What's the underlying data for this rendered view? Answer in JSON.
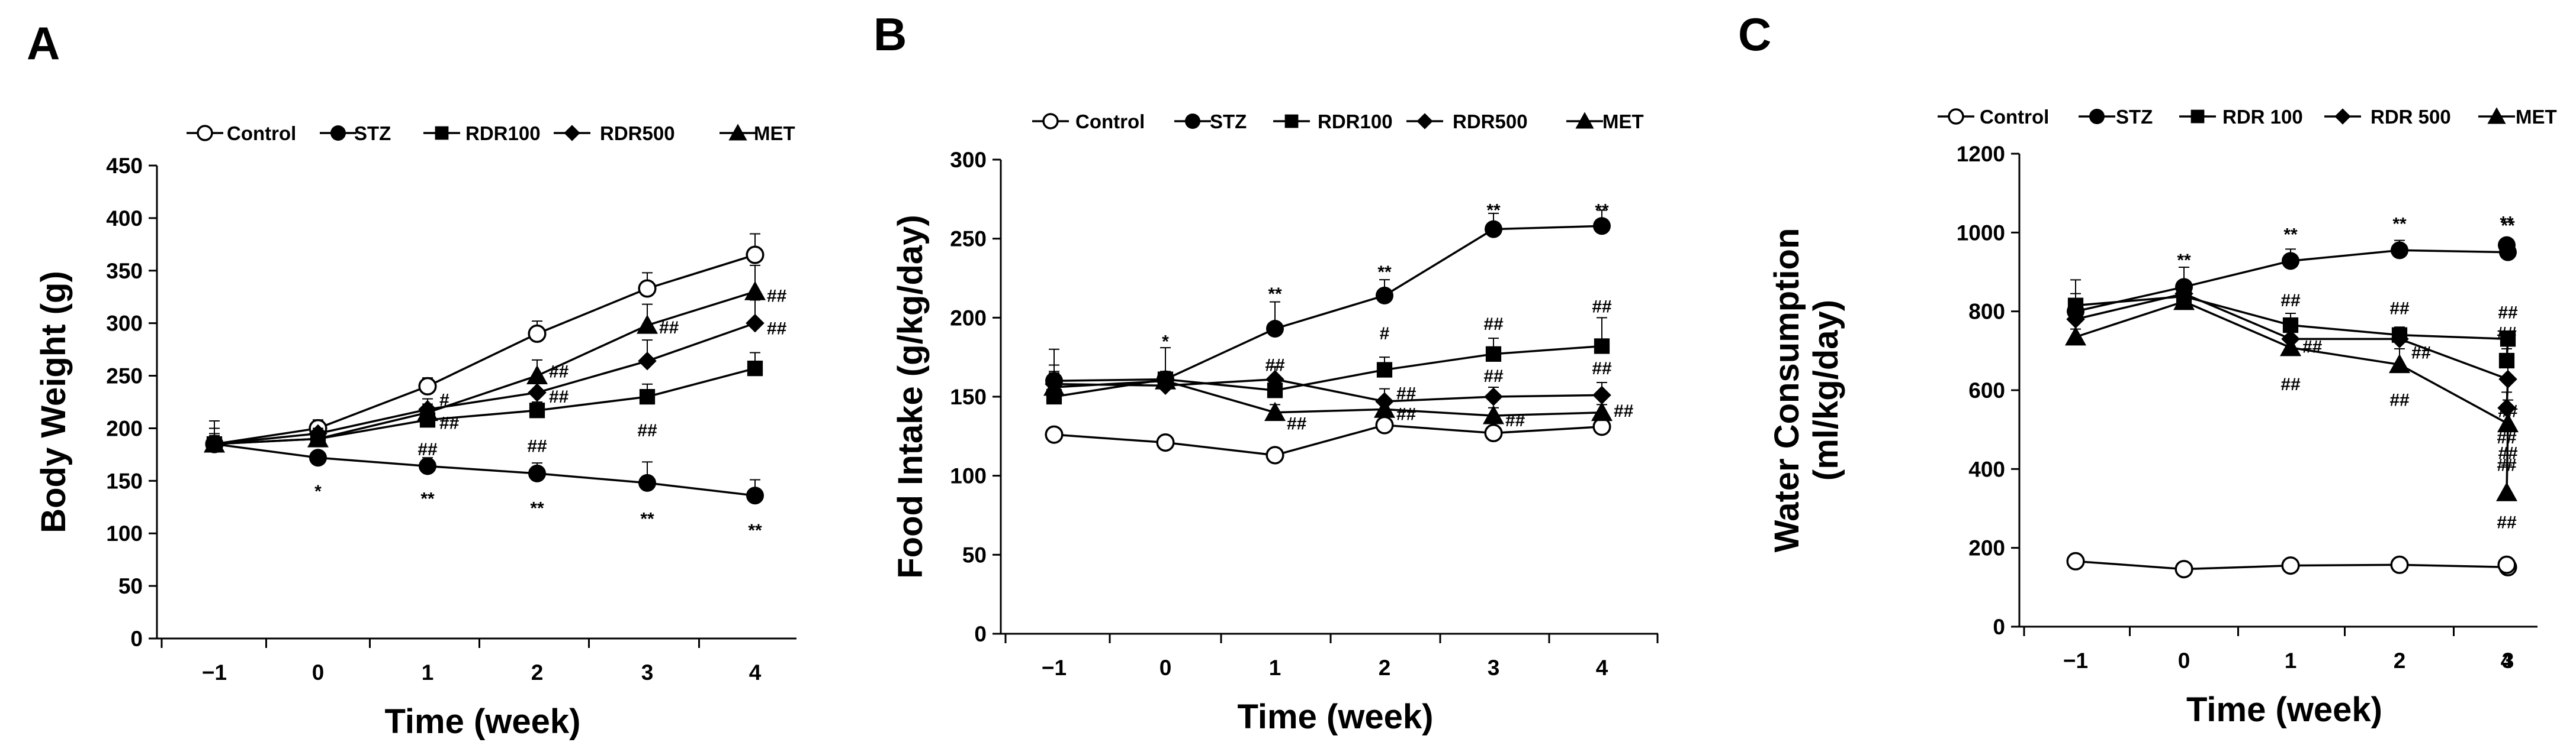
{
  "chart_data": [
    {
      "type": "line",
      "panel_letter": "A",
      "xlabel": "Time (week)",
      "ylabel": "Body Weight (g)",
      "ylabel_lines": [
        "Body Weight (g)"
      ],
      "x": [
        "−1",
        "0",
        "1",
        "2",
        "3",
        "4"
      ],
      "ylim": [
        0,
        450
      ],
      "ytick_step": 50,
      "ytick_labels": [
        "0",
        "50",
        "100",
        "150",
        "200",
        "250",
        "300",
        "350",
        "400",
        "450"
      ],
      "legend_position": "top",
      "series": [
        {
          "name": "Control",
          "marker": "circle-open",
          "values": [
            185,
            200,
            240,
            290,
            333,
            365
          ],
          "errors": [
            22,
            8,
            8,
            12,
            15,
            20
          ]
        },
        {
          "name": "STZ",
          "marker": "circle",
          "values": [
            185,
            172,
            164,
            157,
            148,
            136
          ],
          "errors": [
            15,
            6,
            8,
            10,
            20,
            15
          ]
        },
        {
          "name": "RDR100",
          "marker": "square",
          "values": [
            185,
            190,
            208,
            217,
            230,
            257
          ],
          "errors": [
            10,
            5,
            8,
            8,
            12,
            15
          ]
        },
        {
          "name": "RDR500",
          "marker": "diamond",
          "values": [
            185,
            195,
            218,
            234,
            264,
            300
          ],
          "errors": [
            8,
            5,
            10,
            12,
            20,
            22
          ]
        },
        {
          "name": "MET",
          "marker": "triangle",
          "values": [
            185,
            190,
            215,
            250,
            298,
            330
          ],
          "errors": [
            8,
            5,
            8,
            15,
            20,
            25
          ]
        }
      ],
      "annotations": [
        {
          "text": "*",
          "x": 1,
          "y": 140,
          "side": "center"
        },
        {
          "text": "**",
          "x": 2,
          "y": 133,
          "side": "center"
        },
        {
          "text": "**",
          "x": 3,
          "y": 124,
          "side": "center"
        },
        {
          "text": "**",
          "x": 4,
          "y": 114,
          "side": "center"
        },
        {
          "text": "**",
          "x": 5,
          "y": 103,
          "side": "center"
        },
        {
          "text": "#",
          "x": 2,
          "y": 227,
          "side": "right"
        },
        {
          "text": "##",
          "x": 2,
          "y": 205,
          "side": "right"
        },
        {
          "text": "##",
          "x": 2,
          "y": 180,
          "side": "center"
        },
        {
          "text": "##",
          "x": 3,
          "y": 254,
          "side": "right"
        },
        {
          "text": "##",
          "x": 3,
          "y": 230,
          "side": "right"
        },
        {
          "text": "##",
          "x": 3,
          "y": 183,
          "side": "center"
        },
        {
          "text": "##",
          "x": 4,
          "y": 296,
          "side": "right"
        },
        {
          "text": "##",
          "x": 4,
          "y": 198,
          "side": "center"
        },
        {
          "text": "##",
          "x": 5,
          "y": 326,
          "side": "right"
        },
        {
          "text": "##",
          "x": 5,
          "y": 295,
          "side": "right"
        }
      ]
    },
    {
      "type": "line",
      "panel_letter": "B",
      "xlabel": "Time (week)",
      "ylabel": "Food Intake (g/kg/day)",
      "ylabel_lines": [
        "Food Intake (g/kg/day)"
      ],
      "x": [
        "−1",
        "0",
        "1",
        "2",
        "3",
        "4"
      ],
      "ylim": [
        0,
        300
      ],
      "ytick_step": 50,
      "ytick_labels": [
        "0",
        "50",
        "100",
        "150",
        "200",
        "250",
        "300"
      ],
      "legend_position": "top",
      "series": [
        {
          "name": "Control",
          "marker": "circle-open",
          "values": [
            126,
            121,
            113,
            132,
            127,
            131
          ],
          "errors": [
            3,
            3,
            3,
            5,
            4,
            4
          ]
        },
        {
          "name": "STZ",
          "marker": "circle",
          "values": [
            160,
            161,
            193,
            214,
            256,
            258
          ],
          "errors": [
            20,
            20,
            17,
            10,
            10,
            10
          ]
        },
        {
          "name": "RDR100",
          "marker": "square",
          "values": [
            150,
            161,
            154,
            167,
            177,
            182
          ],
          "errors": [
            15,
            5,
            8,
            8,
            10,
            18
          ]
        },
        {
          "name": "RDR500",
          "marker": "diamond",
          "values": [
            158,
            157,
            161,
            147,
            150,
            151
          ],
          "errors": [
            12,
            5,
            8,
            8,
            6,
            8
          ]
        },
        {
          "name": "MET",
          "marker": "triangle",
          "values": [
            156,
            160,
            140,
            142,
            138,
            140
          ],
          "errors": [
            10,
            5,
            5,
            5,
            5,
            5
          ]
        }
      ],
      "annotations": [
        {
          "text": "*",
          "x": 1,
          "y": 185,
          "side": "center"
        },
        {
          "text": "**",
          "x": 2,
          "y": 215,
          "side": "center"
        },
        {
          "text": "**",
          "x": 3,
          "y": 229,
          "side": "center"
        },
        {
          "text": "**",
          "x": 4,
          "y": 268,
          "side": "center"
        },
        {
          "text": "**",
          "x": 5,
          "y": 268,
          "side": "center"
        },
        {
          "text": "##",
          "x": 2,
          "y": 170,
          "side": "center"
        },
        {
          "text": "##",
          "x": 2,
          "y": 133,
          "side": "right"
        },
        {
          "text": "#",
          "x": 3,
          "y": 190,
          "side": "center"
        },
        {
          "text": "##",
          "x": 3,
          "y": 152,
          "side": "right"
        },
        {
          "text": "##",
          "x": 3,
          "y": 139,
          "side": "right"
        },
        {
          "text": "##",
          "x": 4,
          "y": 196,
          "side": "center"
        },
        {
          "text": "##",
          "x": 4,
          "y": 163,
          "side": "center"
        },
        {
          "text": "##",
          "x": 4,
          "y": 135,
          "side": "right"
        },
        {
          "text": "##",
          "x": 5,
          "y": 207,
          "side": "center"
        },
        {
          "text": "##",
          "x": 5,
          "y": 168,
          "side": "center"
        },
        {
          "text": "##",
          "x": 5,
          "y": 141,
          "side": "right"
        }
      ]
    },
    {
      "type": "line",
      "panel_letter": "C",
      "xlabel": "Time (week)",
      "ylabel": "Water Consumption (ml/kg/day)",
      "ylabel_lines": [
        "Water Consumption",
        "(ml/kg/day)"
      ],
      "x": [
        "−1",
        "0",
        "1",
        "2",
        "3",
        "4"
      ],
      "ylim": [
        0,
        1200
      ],
      "ytick_step": 200,
      "ytick_labels": [
        "0",
        "200",
        "400",
        "600",
        "800",
        "1000",
        "1200"
      ],
      "legend_position": "top",
      "series": [
        {
          "name": "Control",
          "marker": "circle-open",
          "values": [
            166,
            146,
            155,
            157,
            151,
            157
          ],
          "errors": [
            5,
            5,
            5,
            5,
            5,
            5
          ]
        },
        {
          "name": "STZ",
          "marker": "circle",
          "values": [
            800,
            862,
            928,
            955,
            950,
            968
          ],
          "errors": [
            80,
            50,
            30,
            25,
            20,
            15
          ]
        },
        {
          "name": "RDR 100",
          "marker": "square",
          "values": [
            815,
            838,
            765,
            740,
            730,
            675
          ],
          "errors": [
            30,
            20,
            30,
            20,
            20,
            30
          ]
        },
        {
          "name": "RDR 500",
          "marker": "diamond",
          "values": [
            780,
            845,
            730,
            730,
            628,
            555
          ],
          "errors": [
            30,
            20,
            20,
            30,
            60,
            40
          ]
        },
        {
          "name": "MET",
          "marker": "triangle",
          "values": [
            735,
            825,
            708,
            665,
            515,
            340
          ],
          "errors": [
            20,
            20,
            30,
            40,
            60,
            70
          ]
        }
      ],
      "annotations": [
        {
          "text": "**",
          "x": 1,
          "y": 930,
          "side": "center"
        },
        {
          "text": "**",
          "x": 2,
          "y": 995,
          "side": "center"
        },
        {
          "text": "**",
          "x": 3,
          "y": 1022,
          "side": "center"
        },
        {
          "text": "**",
          "x": 4,
          "y": 1018,
          "side": "center"
        },
        {
          "text": "**",
          "x": 5,
          "y": 1025,
          "side": "center"
        },
        {
          "text": "##",
          "x": 2,
          "y": 828,
          "side": "center"
        },
        {
          "text": "##",
          "x": 2,
          "y": 710,
          "side": "right"
        },
        {
          "text": "##",
          "x": 2,
          "y": 615,
          "side": "center"
        },
        {
          "text": "##",
          "x": 3,
          "y": 808,
          "side": "center"
        },
        {
          "text": "##",
          "x": 3,
          "y": 695,
          "side": "right"
        },
        {
          "text": "##",
          "x": 3,
          "y": 575,
          "side": "center"
        },
        {
          "text": "##",
          "x": 4,
          "y": 797,
          "side": "center"
        },
        {
          "text": "##",
          "x": 4,
          "y": 547,
          "side": "center"
        },
        {
          "text": "##",
          "x": 4,
          "y": 440,
          "side": "center"
        },
        {
          "text": "##",
          "x": 5,
          "y": 745,
          "side": "center"
        },
        {
          "text": "##",
          "x": 5,
          "y": 480,
          "side": "center"
        },
        {
          "text": "##",
          "x": 5,
          "y": 410,
          "side": "center"
        },
        {
          "text": "##",
          "x": 5,
          "y": 265,
          "side": "center"
        }
      ]
    }
  ]
}
